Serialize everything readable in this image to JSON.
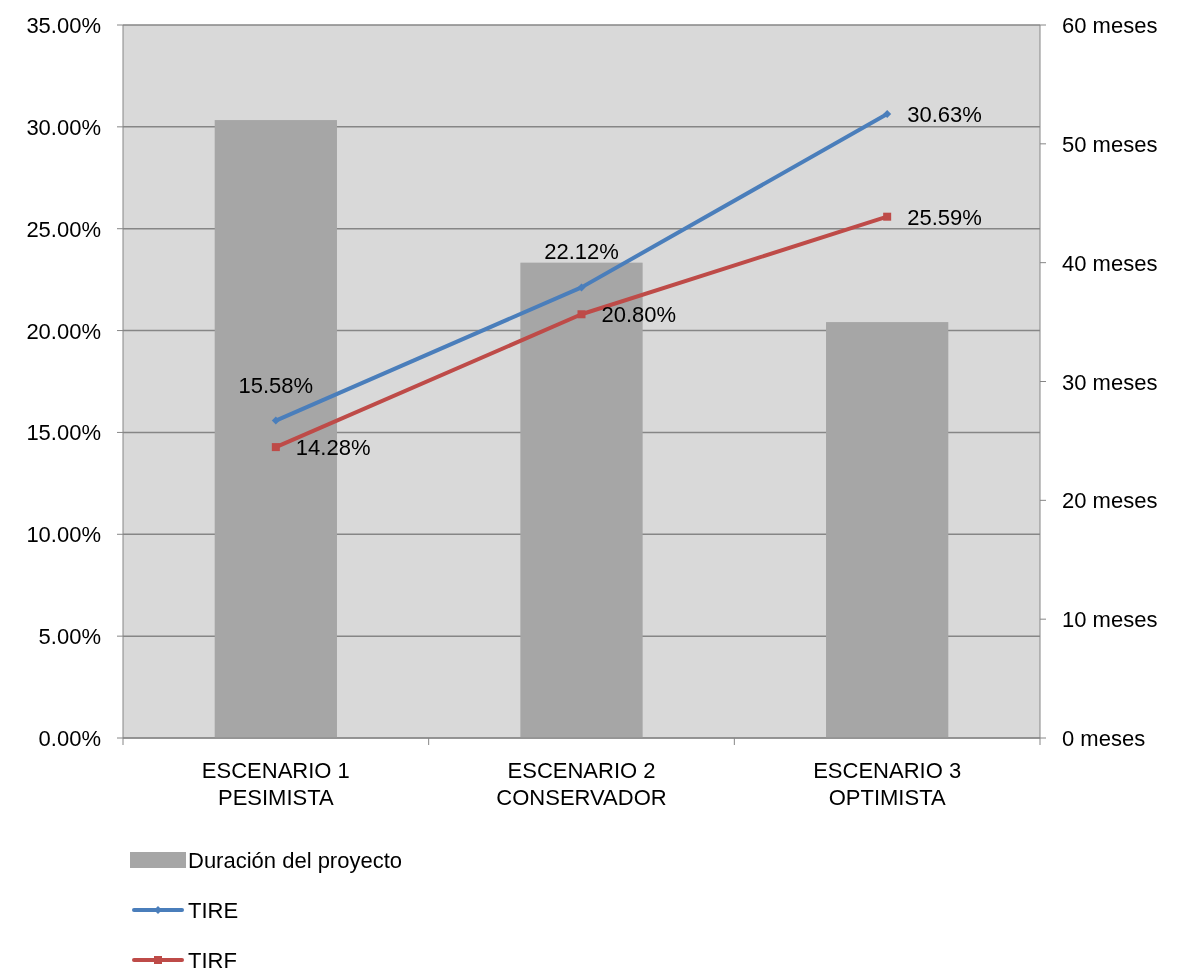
{
  "chart_data": {
    "type": "bar",
    "categories": [
      "ESCENARIO 1\nPESIMISTA",
      "ESCENARIO 2\nCONSERVADOR",
      "ESCENARIO 3\nOPTIMISTA"
    ],
    "series": [
      {
        "name": "Duración del proyecto",
        "axis": "y2",
        "color": "#a6a6a6",
        "values": [
          52,
          40,
          35
        ]
      },
      {
        "name": "TIRE",
        "type": "line",
        "color": "#4a7ebb",
        "marker": "diamond",
        "values": [
          15.58,
          22.12,
          30.63
        ],
        "value_labels": [
          "15.58%",
          "22.12%",
          "30.63%"
        ]
      },
      {
        "name": "TIRF",
        "type": "line",
        "color": "#be4b48",
        "marker": "square",
        "values": [
          14.28,
          20.8,
          25.59
        ],
        "value_labels": [
          "14.28%",
          "20.80%",
          "25.59%"
        ]
      }
    ],
    "ylim": [
      0,
      35
    ],
    "yticks": [
      {
        "value": 0,
        "label": "0.00%"
      },
      {
        "value": 5,
        "label": "5.00%"
      },
      {
        "value": 10,
        "label": "10.00%"
      },
      {
        "value": 15,
        "label": "15.00%"
      },
      {
        "value": 20,
        "label": "20.00%"
      },
      {
        "value": 25,
        "label": "25.00%"
      },
      {
        "value": 30,
        "label": "30.00%"
      },
      {
        "value": 35,
        "label": "35.00%"
      }
    ],
    "y2lim": [
      0,
      60
    ],
    "y2ticks": [
      {
        "value": 0,
        "label": "0 meses"
      },
      {
        "value": 10,
        "label": "10 meses"
      },
      {
        "value": 20,
        "label": "20 meses"
      },
      {
        "value": 30,
        "label": "30 meses"
      },
      {
        "value": 40,
        "label": "40 meses"
      },
      {
        "value": 50,
        "label": "50 meses"
      },
      {
        "value": 60,
        "label": "60 meses"
      }
    ],
    "grid": "y",
    "legend": "bottom"
  }
}
